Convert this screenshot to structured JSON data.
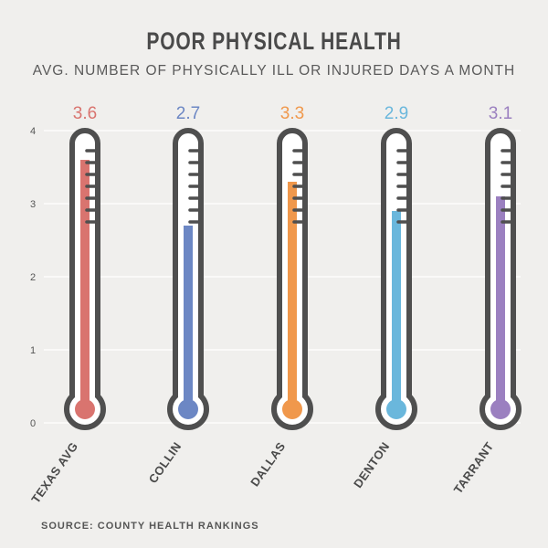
{
  "title": "POOR PHYSICAL HEALTH",
  "subtitle": "AVG. NUMBER OF PHYSICALLY ILL OR INJURED DAYS A MONTH",
  "source": "SOURCE: COUNTY HEALTH RANKINGS",
  "chart_data": {
    "type": "bar",
    "style": "thermometer",
    "categories": [
      "TEXAS AVG",
      "COLLIN",
      "DALLAS",
      "DENTON",
      "TARRANT"
    ],
    "values": [
      3.6,
      2.7,
      3.3,
      2.9,
      3.1
    ],
    "value_labels": [
      "3.6",
      "2.7",
      "3.3",
      "2.9",
      "3.1"
    ],
    "colors": [
      "#d9746f",
      "#6c87c4",
      "#f0984c",
      "#6ab7dc",
      "#9b80c0"
    ],
    "ylim": [
      0,
      4
    ],
    "yticks": [
      "0",
      "1",
      "2",
      "3",
      "4"
    ],
    "grid": true,
    "frame_color": "#4f4f4f",
    "grid_color": "#ffffff"
  }
}
